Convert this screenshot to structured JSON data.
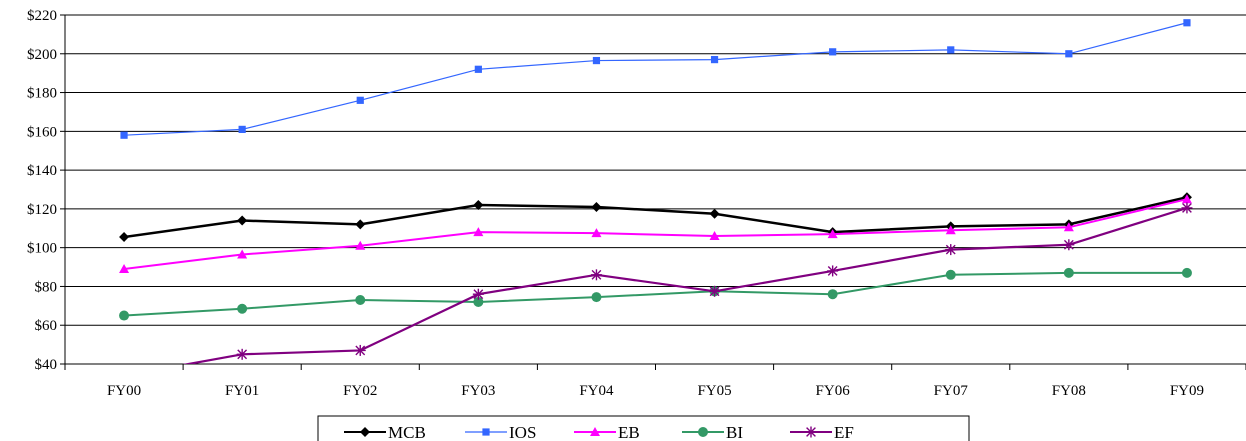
{
  "chart_data": {
    "type": "line",
    "title": "",
    "xlabel": "",
    "ylabel": "",
    "categories": [
      "FY00",
      "FY01",
      "FY02",
      "FY03",
      "FY04",
      "FY05",
      "FY06",
      "FY07",
      "FY08",
      "FY09"
    ],
    "ylim": [
      40,
      220
    ],
    "yticks": [
      40,
      60,
      80,
      100,
      120,
      140,
      160,
      180,
      200,
      220
    ],
    "ytick_labels": [
      "$40",
      "$60",
      "$80",
      "$100",
      "$120",
      "$140",
      "$160",
      "$180",
      "$200",
      "$220"
    ],
    "grid": "horizontal",
    "legend_position": "bottom",
    "series": [
      {
        "name": "MCB",
        "color": "#000000",
        "marker": "diamond",
        "values": [
          105.5,
          114,
          112,
          122,
          121,
          117.5,
          108,
          111,
          112,
          126
        ]
      },
      {
        "name": "IOS",
        "color": "#3366ff",
        "marker": "square",
        "values": [
          158,
          161,
          176,
          192,
          196.5,
          197,
          201,
          202,
          200,
          216
        ]
      },
      {
        "name": "EB",
        "color": "#ff00ff",
        "marker": "triangle",
        "values": [
          89,
          96.5,
          101,
          108,
          107.5,
          106,
          107,
          109,
          110.5,
          125
        ]
      },
      {
        "name": "BI",
        "color": "#339966",
        "marker": "circle",
        "values": [
          65,
          68.5,
          73,
          72,
          74.5,
          77.5,
          76,
          86,
          87,
          87
        ]
      },
      {
        "name": "EF",
        "color": "#800080",
        "marker": "star",
        "values": [
          34,
          45,
          47,
          76,
          86,
          77.5,
          88,
          99,
          101.5,
          120.5
        ]
      }
    ]
  }
}
